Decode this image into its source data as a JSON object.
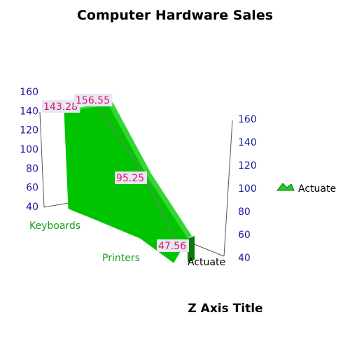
{
  "chart_data": {
    "type": "area",
    "title": "Computer Hardware Sales",
    "ztitle": "Z Axis Title",
    "categories": [
      "Keyboards",
      "",
      "Printers",
      ""
    ],
    "series": [
      {
        "name": "Actuate",
        "values": [
          143.28,
          156.55,
          95.25,
          47.56
        ],
        "labels": [
          "143.28",
          "156.55",
          "95.25",
          "47.56"
        ]
      }
    ],
    "series_axis_label": "Actuate",
    "ylim": [
      40,
      160
    ],
    "yticks": [
      40,
      60,
      80,
      100,
      120,
      140,
      160
    ],
    "legend_position": "right",
    "grid": false,
    "colors": {
      "series": "#22cc22",
      "series_front": "#00c400",
      "series_side": "#00a800",
      "series_top": "#33d633",
      "series_dark": "#0a7a0a",
      "tick": "#1a1aa0",
      "category": "#1c9c1c",
      "data_label": "#e0195a",
      "data_label_bg": "#e6e6f5"
    }
  }
}
